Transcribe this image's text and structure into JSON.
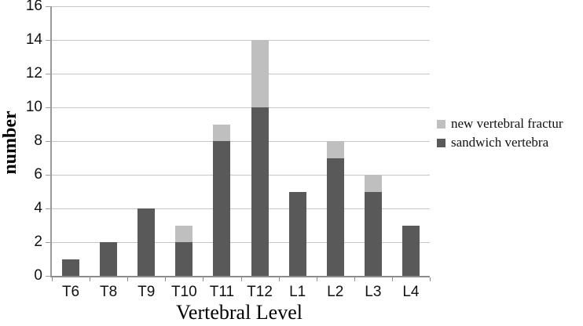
{
  "chart_data": {
    "type": "bar",
    "stacked": true,
    "title": "",
    "xlabel": "Vertebral Level",
    "ylabel": "number",
    "categories": [
      "T6",
      "T8",
      "T9",
      "T10",
      "T11",
      "T12",
      "L1",
      "L2",
      "L3",
      "L4"
    ],
    "series": [
      {
        "name": "sandwich vertebra",
        "color": "#595959",
        "values": [
          1,
          2,
          4,
          2,
          8,
          10,
          5,
          7,
          5,
          3
        ]
      },
      {
        "name": "new vertebral fractur",
        "color": "#bfbfbf",
        "values": [
          0,
          0,
          0,
          1,
          1,
          4,
          0,
          1,
          1,
          0
        ]
      }
    ],
    "totals": [
      1,
      2,
      4,
      3,
      9,
      14,
      5,
      8,
      6,
      3
    ],
    "ylim": [
      0,
      16
    ],
    "yticks": [
      0,
      2,
      4,
      6,
      8,
      10,
      12,
      14,
      16
    ],
    "grid": "horizontal",
    "legend_position": "right",
    "legend_order": [
      "new vertebral fractur",
      "sandwich vertebra"
    ]
  },
  "colors": {
    "dark_bar": "#595959",
    "light_bar": "#bfbfbf",
    "gridline": "#c6c6c6",
    "axis": "#9a9a9a",
    "background": "#ffffff",
    "text": "#111111"
  }
}
